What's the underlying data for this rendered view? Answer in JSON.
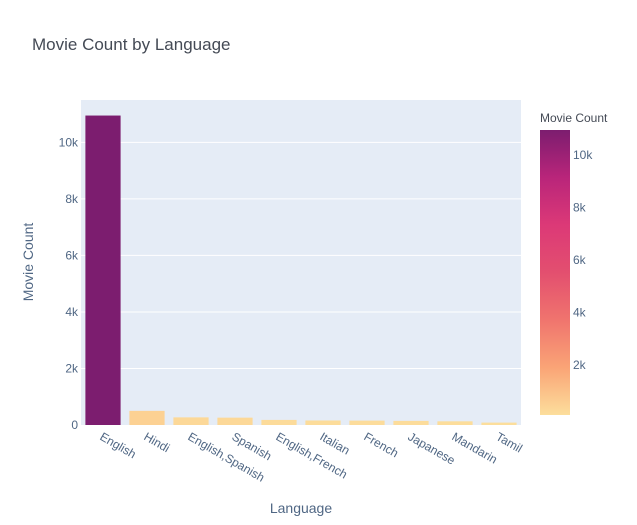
{
  "chart_data": {
    "type": "bar",
    "title": "Movie Count by Language",
    "xlabel": "Language",
    "ylabel": "Movie Count",
    "categories": [
      "English",
      "Hindi",
      "English,Spanish",
      "Spanish",
      "English,French",
      "Italian",
      "French",
      "Japanese",
      "Mandarin",
      "Tamil"
    ],
    "values": [
      10950,
      500,
      270,
      260,
      180,
      160,
      155,
      145,
      130,
      85
    ],
    "ylim": [
      0,
      11500
    ],
    "y_ticks": [
      0,
      2000,
      4000,
      6000,
      8000,
      10000
    ],
    "y_tick_labels": [
      "0",
      "2k",
      "4k",
      "6k",
      "8k",
      "10k"
    ],
    "grid": true,
    "colorbar": {
      "title": "Movie Count",
      "range": [
        85,
        10950
      ],
      "ticks": [
        2000,
        4000,
        6000,
        8000,
        10000
      ],
      "tick_labels": [
        "2k",
        "4k",
        "6k",
        "8k",
        "10k"
      ],
      "colors": [
        "#fcde9c",
        "#faa476",
        "#f0746e",
        "#e34f6f",
        "#dc3977",
        "#b9257a",
        "#7c1d6f"
      ]
    },
    "colors": {
      "plot_bg": "#e5ecf6",
      "grid": "#ffffff",
      "text": "#506784"
    }
  }
}
